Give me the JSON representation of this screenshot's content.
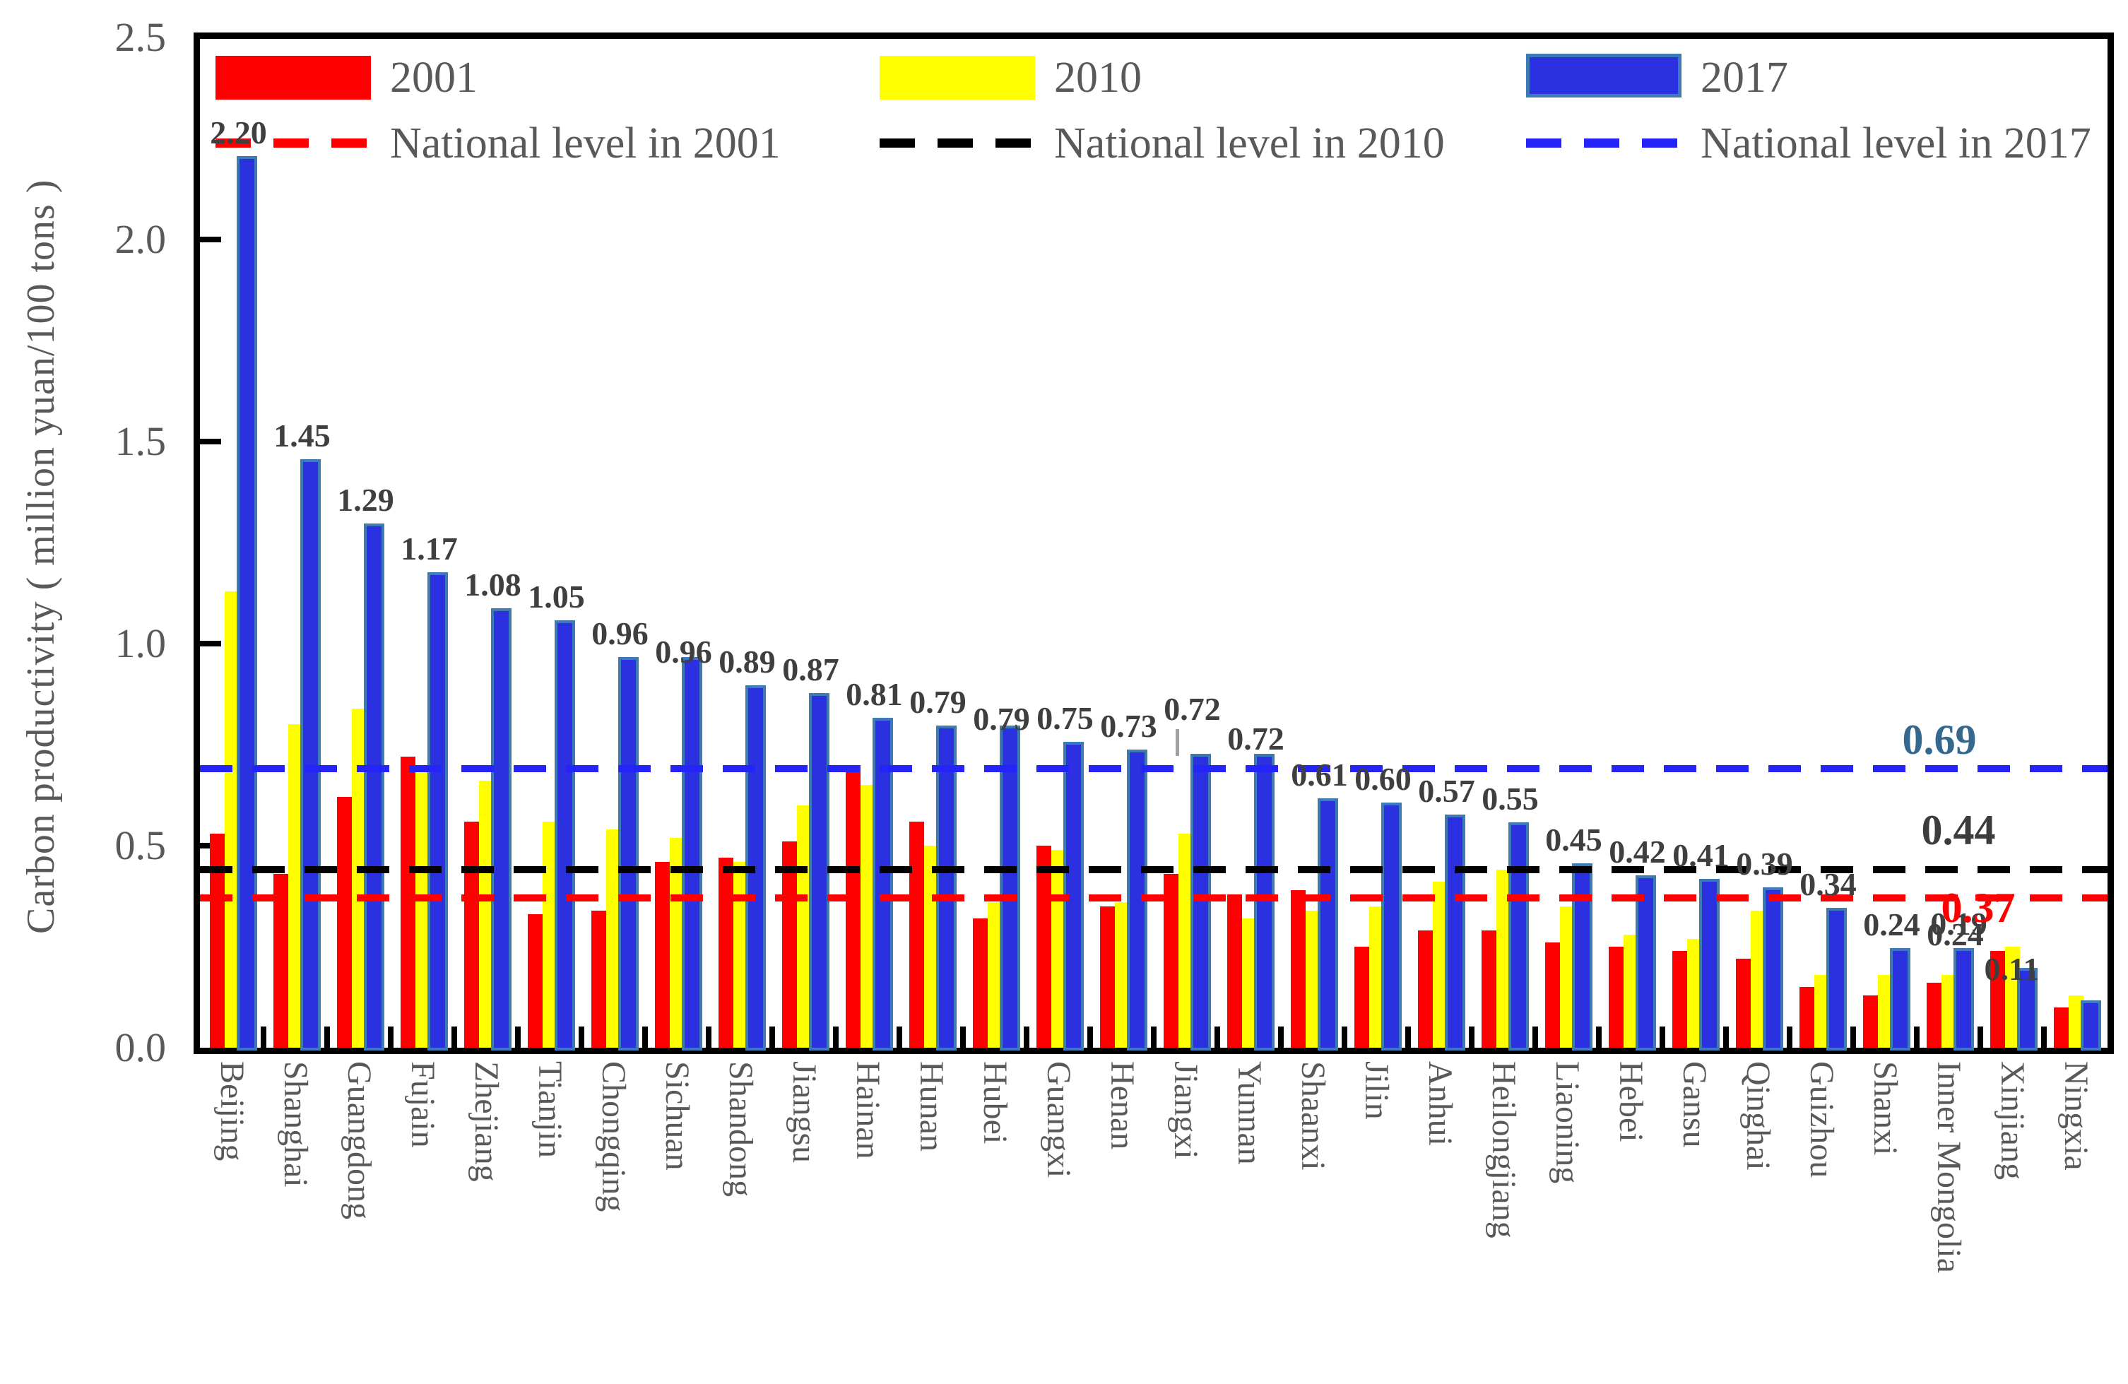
{
  "chart_data": {
    "type": "bar",
    "title": "",
    "xlabel": "",
    "ylabel": "Carbon productivity ( million yuan/100 tons )",
    "ylim": [
      0.0,
      2.5
    ],
    "ytick_labels": [
      "0.0",
      "0.5",
      "1.0",
      "1.5",
      "2.0",
      "2.5"
    ],
    "grid": "off",
    "legend_position": "top-inside",
    "categories": [
      "Beijing",
      "Shanghai",
      "Guangdong",
      "Fujain",
      "Zhejiang",
      "Tianjin",
      "Chongqing",
      "Sichuan",
      "Shandong",
      "Jiangsu",
      "Hainan",
      "Hunan",
      "Hubei",
      "Guangxi",
      "Henan",
      "Jiangxi",
      "Yunnan",
      "Shaanxi",
      "Jilin",
      "Anhui",
      "Heilongjiang",
      "Liaoning",
      "Hebei",
      "Gansu",
      "Qinghai",
      "Guizhou",
      "Shanxi",
      "Inner Mongolia",
      "Xinjiang",
      "Ningxia"
    ],
    "series": [
      {
        "name": "2001",
        "color": "#fe0000",
        "values": [
          0.53,
          0.43,
          0.62,
          0.72,
          0.56,
          0.33,
          0.34,
          0.46,
          0.47,
          0.51,
          0.7,
          0.56,
          0.32,
          0.5,
          0.35,
          0.43,
          0.38,
          0.39,
          0.25,
          0.29,
          0.29,
          0.26,
          0.25,
          0.24,
          0.22,
          0.15,
          0.13,
          0.16,
          0.24,
          0.1
        ]
      },
      {
        "name": "2010",
        "color": "#ffff00",
        "values": [
          1.13,
          0.8,
          0.84,
          0.7,
          0.66,
          0.56,
          0.54,
          0.52,
          0.46,
          0.6,
          0.65,
          0.5,
          0.36,
          0.49,
          0.36,
          0.53,
          0.32,
          0.34,
          0.35,
          0.41,
          0.44,
          0.35,
          0.28,
          0.27,
          0.34,
          0.18,
          0.18,
          0.18,
          0.25,
          0.13
        ]
      },
      {
        "name": "2017",
        "color": "#2b31e0",
        "border_color": "#3d7bb7",
        "values": [
          2.2,
          1.45,
          1.29,
          1.17,
          1.08,
          1.05,
          0.96,
          0.96,
          0.89,
          0.87,
          0.81,
          0.79,
          0.79,
          0.75,
          0.73,
          0.72,
          0.72,
          0.61,
          0.6,
          0.57,
          0.55,
          0.45,
          0.42,
          0.41,
          0.39,
          0.34,
          0.24,
          0.24,
          0.19,
          0.11
        ]
      }
    ],
    "bar_value_labels": [
      "2.20",
      "1.45",
      "1.29",
      "1.17",
      "1.08",
      "1.05",
      "0.96",
      "0.96",
      "0.89",
      "0.87",
      "0.81",
      "0.79",
      "0.79",
      "0.75",
      "0.73",
      "0.72",
      "0.72",
      "0.61",
      "0.60",
      "0.57",
      "0.55",
      "0.45",
      "0.42",
      "0.41",
      "0.39",
      "0.34",
      "0.24",
      "0.24",
      "0.19",
      "0.11"
    ],
    "label_offsets": {
      "7": [
        0,
        26
      ],
      "12": [
        0,
        24
      ],
      "15": [
        0,
        -30
      ],
      "16": [
        0,
        12
      ],
      "27": [
        0,
        14
      ],
      "28": [
        -85,
        5
      ],
      "29": [
        -100,
        0
      ]
    },
    "reference_lines": [
      {
        "label": "National level in 2001",
        "value": 0.37,
        "value_label": "0.37",
        "color": "#fe0000",
        "value_label_color": "#fe0000"
      },
      {
        "label": "National level in 2010",
        "value": 0.44,
        "value_label": "0.44",
        "color": "#000000",
        "value_label_color": "#3c3c3c"
      },
      {
        "label": "National level in 2017",
        "value": 0.69,
        "value_label": "0.69",
        "color": "#2524f8",
        "value_label_color": "#35688f"
      }
    ],
    "leader_line": {
      "category_index": 15,
      "color": "#a0a0a0"
    }
  }
}
